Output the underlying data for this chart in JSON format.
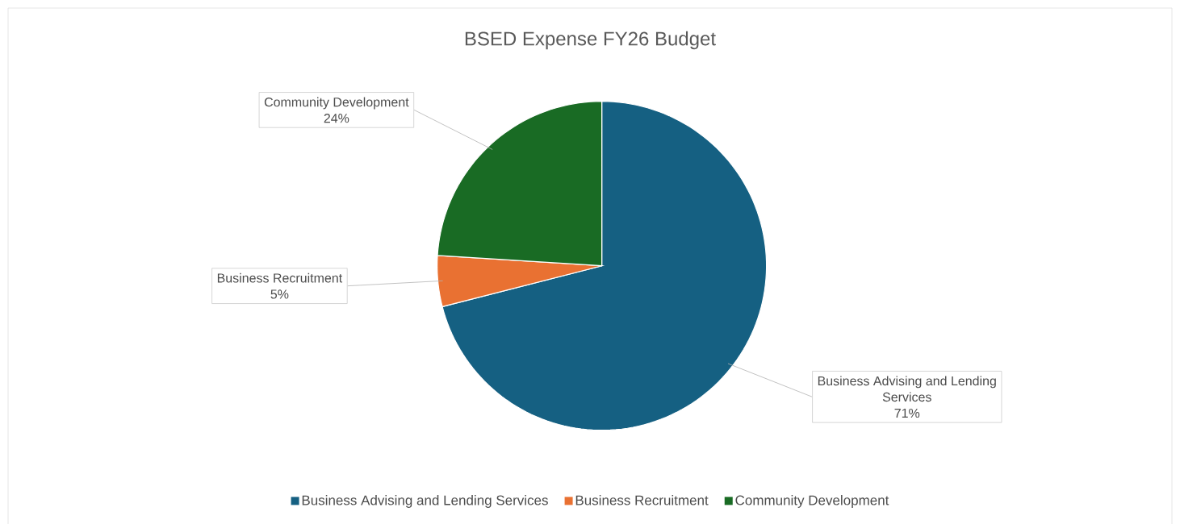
{
  "chart_data": {
    "type": "pie",
    "title": "BSED Expense FY26 Budget",
    "categories": [
      "Business Advising and Lending Services",
      "Business Recruitment",
      "Community Development"
    ],
    "values": [
      71,
      5,
      24
    ],
    "value_labels": [
      "71%",
      "5%",
      "24%"
    ],
    "colors": [
      "#156082",
      "#e97132",
      "#196b24"
    ],
    "legend": "bottom"
  }
}
